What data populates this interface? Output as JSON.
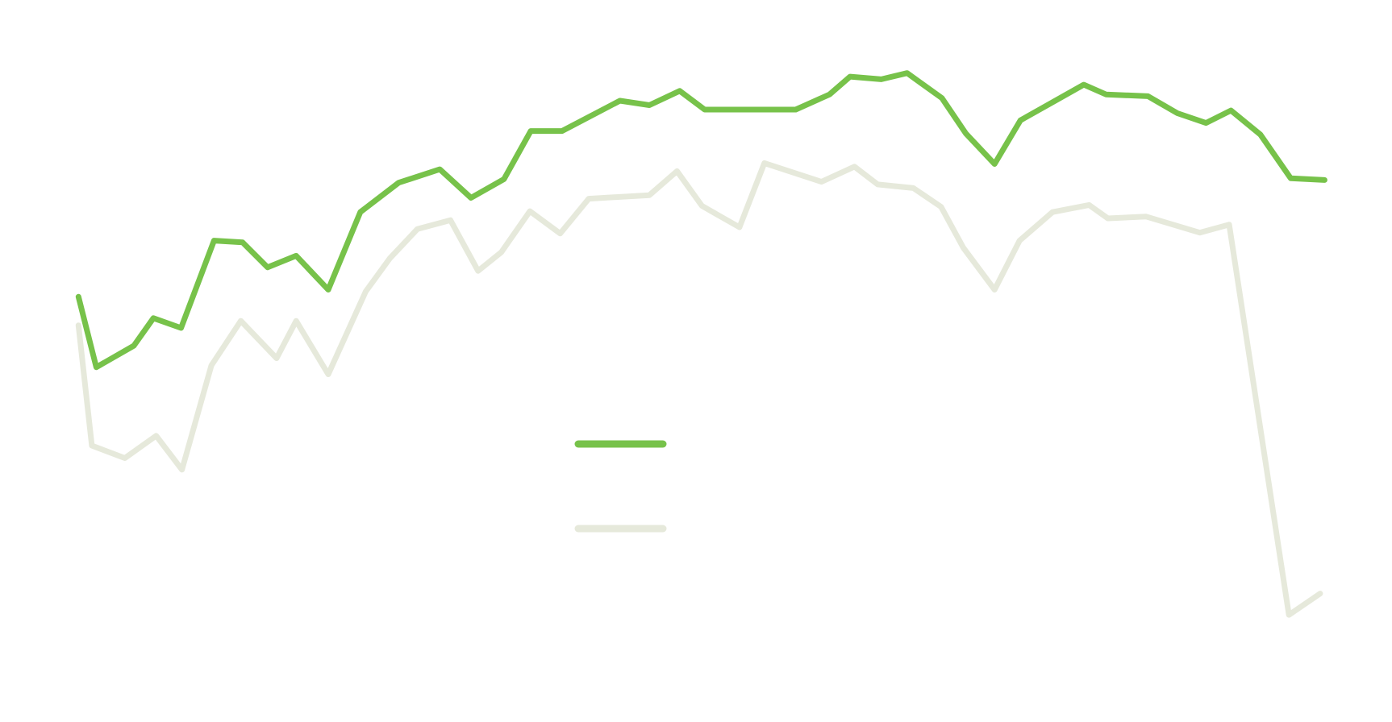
{
  "chart_data": {
    "type": "line",
    "series": [
      {
        "color": "#77c24a",
        "x": [
          88,
          108,
          150,
          172,
          203,
          240,
          272,
          300,
          332,
          368,
          404,
          447,
          493,
          528,
          565,
          595,
          630,
          695,
          728,
          762,
          790,
          892,
          930,
          953,
          988,
          1017,
          1056,
          1083,
          1115,
          1144,
          1215,
          1240,
          1287,
          1320,
          1352,
          1380,
          1413,
          1447,
          1485
        ],
        "values": [
          467,
          388,
          412,
          443,
          432,
          530,
          528,
          500,
          513,
          475,
          562,
          595,
          610,
          578,
          599,
          653,
          653,
          687,
          682,
          698,
          677,
          677,
          694,
          714,
          711,
          718,
          690,
          650,
          616,
          665,
          705,
          694,
          692,
          673,
          662,
          676,
          649,
          600,
          598
        ]
      },
      {
        "color": "#e6e9db",
        "x": [
          88,
          103,
          140,
          175,
          204,
          237,
          270,
          310,
          332,
          368,
          410,
          437,
          468,
          505,
          536,
          562,
          594,
          628,
          660,
          728,
          759,
          787,
          829,
          857,
          921,
          958,
          984,
          1024,
          1055,
          1080,
          1115,
          1143,
          1180,
          1221,
          1242,
          1285,
          1345,
          1378,
          1445,
          1480
        ],
        "values": [
          435,
          300,
          286,
          311,
          273,
          390,
          440,
          398,
          440,
          380,
          473,
          510,
          543,
          553,
          496,
          517,
          563,
          538,
          577,
          581,
          608,
          569,
          545,
          617,
          596,
          613,
          593,
          589,
          568,
          522,
          475,
          530,
          562,
          570,
          555,
          557,
          539,
          548,
          110,
          134
        ]
      }
    ]
  }
}
